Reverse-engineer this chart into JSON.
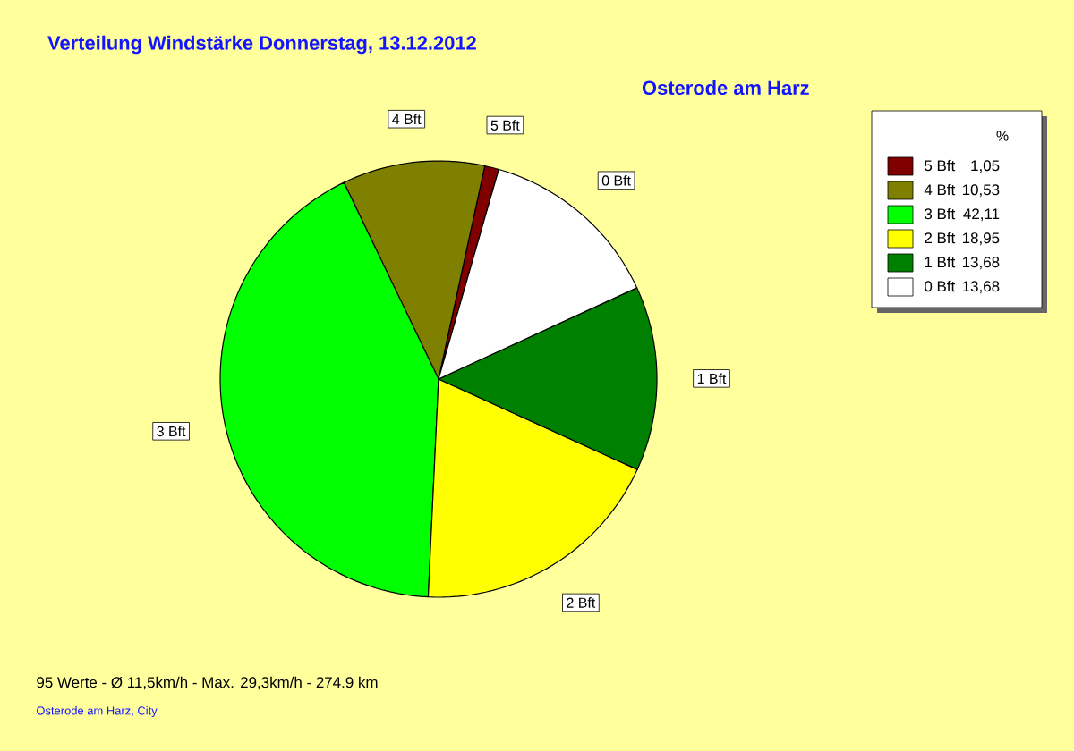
{
  "chart_data": {
    "type": "pie",
    "title": "Verteilung Windstärke  Donnerstag, 13.12.2012",
    "subtitle": "Osterode am Harz",
    "categories": [
      "5 Bft",
      "4 Bft",
      "3 Bft",
      "2 Bft",
      "1 Bft",
      "0 Bft"
    ],
    "values": [
      1.05,
      10.53,
      42.11,
      18.95,
      13.68,
      13.68
    ],
    "value_labels": [
      "1,05",
      "10,53",
      "42,11",
      "18,95",
      "13,68",
      "13,68"
    ],
    "colors": [
      "#800000",
      "#808000",
      "#00ff00",
      "#ffff00",
      "#008000",
      "#ffffff"
    ],
    "legend": "top right",
    "legend_title": "%",
    "annotations": [
      "95 Werte - Ø 11,5km/h - Max. 29,3km/h - 274.9 km",
      "Osterode am Harz, City"
    ]
  }
}
